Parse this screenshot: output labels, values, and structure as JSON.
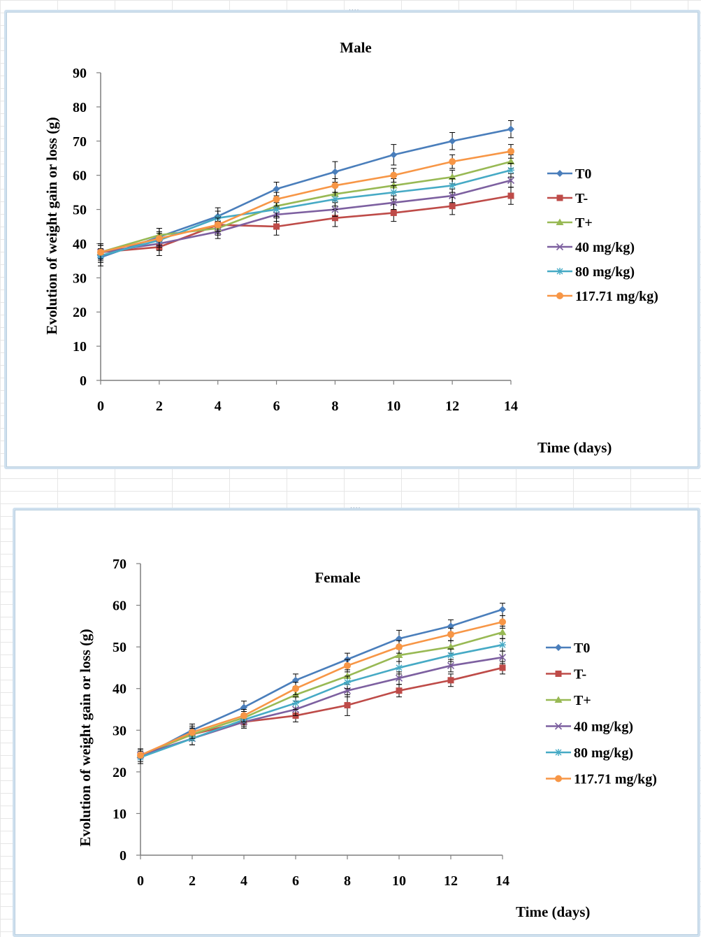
{
  "colors": {
    "T0": "#4a7ebb",
    "T-": "#be4b48",
    "T+": "#98b954",
    "40 mg/kg)": "#7d60a0",
    "80 mg/kg)": "#46aac5",
    "117.71 mg/kg)": "#f79646"
  },
  "chart_data": [
    {
      "type": "line",
      "title": "Male",
      "xlabel": "Time (days)",
      "ylabel": "Evolution of weight gain or loss (g)",
      "x": [
        0,
        2,
        4,
        6,
        8,
        10,
        12,
        14
      ],
      "xticks": [
        "0",
        "2",
        "4",
        "6",
        "8",
        "10",
        "12",
        "14"
      ],
      "yticks": [
        "0",
        "10",
        "20",
        "30",
        "40",
        "50",
        "60",
        "70",
        "80",
        "90"
      ],
      "ylim": [
        0,
        90
      ],
      "grid": false,
      "legend_position": "right",
      "error_bars": true,
      "series": [
        {
          "name": "T0",
          "marker": "diamond",
          "values": [
            36,
            42,
            48,
            56,
            61,
            66,
            70,
            73.5
          ],
          "errors": [
            2.5,
            2.5,
            2.5,
            2,
            3,
            3,
            2.5,
            2.5
          ]
        },
        {
          "name": "T-",
          "marker": "square",
          "values": [
            37.5,
            39,
            45.5,
            45,
            47.5,
            49,
            51,
            54
          ],
          "errors": [
            2.5,
            2.5,
            2.5,
            2.5,
            2.5,
            2.5,
            2.5,
            2.5
          ]
        },
        {
          "name": "T+",
          "marker": "triangle",
          "values": [
            37.5,
            42.5,
            44.5,
            51,
            54.5,
            57,
            59.5,
            64
          ],
          "errors": [
            2,
            2,
            2,
            2,
            2,
            2,
            2,
            2
          ]
        },
        {
          "name": "40 mg/kg)",
          "marker": "x",
          "values": [
            37.5,
            40,
            43.5,
            48.5,
            50,
            52,
            54,
            58.5
          ],
          "errors": [
            2,
            2,
            2,
            2,
            2,
            2,
            2,
            2
          ]
        },
        {
          "name": "80 mg/kg)",
          "marker": "star",
          "values": [
            36.5,
            41,
            47.5,
            50,
            53,
            55,
            57,
            61.5
          ],
          "errors": [
            2,
            2,
            2,
            2,
            2,
            2,
            2,
            2
          ]
        },
        {
          "name": "117.71 mg/kg)",
          "marker": "circle",
          "values": [
            37.5,
            41.5,
            45.5,
            53,
            57,
            60,
            64,
            67
          ],
          "errors": [
            2,
            2,
            2,
            2,
            2,
            2,
            2,
            2
          ]
        }
      ]
    },
    {
      "type": "line",
      "title": "Female",
      "xlabel": "Time (days)",
      "ylabel": "Evolution of weight gain or loss (g)",
      "x": [
        0,
        2,
        4,
        6,
        8,
        10,
        12,
        14
      ],
      "xticks": [
        "0",
        "2",
        "4",
        "6",
        "8",
        "10",
        "12",
        "14"
      ],
      "yticks": [
        "0",
        "10",
        "20",
        "30",
        "40",
        "50",
        "60",
        "70"
      ],
      "ylim": [
        0,
        70
      ],
      "grid": false,
      "legend_position": "right",
      "error_bars": true,
      "series": [
        {
          "name": "T0",
          "marker": "diamond",
          "values": [
            23.5,
            30,
            35.5,
            42,
            47,
            52,
            55,
            59
          ],
          "errors": [
            1.5,
            1.5,
            1.5,
            1.5,
            1.5,
            2,
            1.5,
            1.5
          ]
        },
        {
          "name": "T-",
          "marker": "square",
          "values": [
            24,
            29,
            32,
            33.5,
            36,
            39.5,
            42,
            45
          ],
          "errors": [
            1.5,
            1.5,
            1.5,
            1.5,
            2.5,
            1.5,
            1.5,
            1.5
          ]
        },
        {
          "name": "T+",
          "marker": "triangle",
          "values": [
            24,
            29,
            33,
            38.5,
            43,
            48,
            50,
            53.5
          ],
          "errors": [
            1.5,
            1.5,
            1.5,
            1.5,
            1.5,
            1.5,
            1.5,
            1.5
          ]
        },
        {
          "name": "40 mg/kg)",
          "marker": "x",
          "values": [
            24,
            28,
            32,
            35,
            39.5,
            42.5,
            45.5,
            47.5
          ],
          "errors": [
            1.5,
            1.5,
            1.5,
            1.5,
            1.5,
            1.5,
            1.5,
            1.5
          ]
        },
        {
          "name": "80 mg/kg)",
          "marker": "star",
          "values": [
            23.5,
            28,
            32.5,
            36.5,
            41.5,
            45,
            48,
            50.5
          ],
          "errors": [
            1.5,
            1.5,
            1.5,
            1.5,
            1.5,
            1.5,
            1.5,
            1.5
          ]
        },
        {
          "name": "117.71 mg/kg)",
          "marker": "circle",
          "values": [
            24,
            29.5,
            33.5,
            40,
            45.5,
            50,
            53,
            56
          ],
          "errors": [
            1.5,
            1.5,
            1.5,
            1.5,
            1.5,
            1.5,
            1.5,
            1.5
          ]
        }
      ]
    }
  ]
}
